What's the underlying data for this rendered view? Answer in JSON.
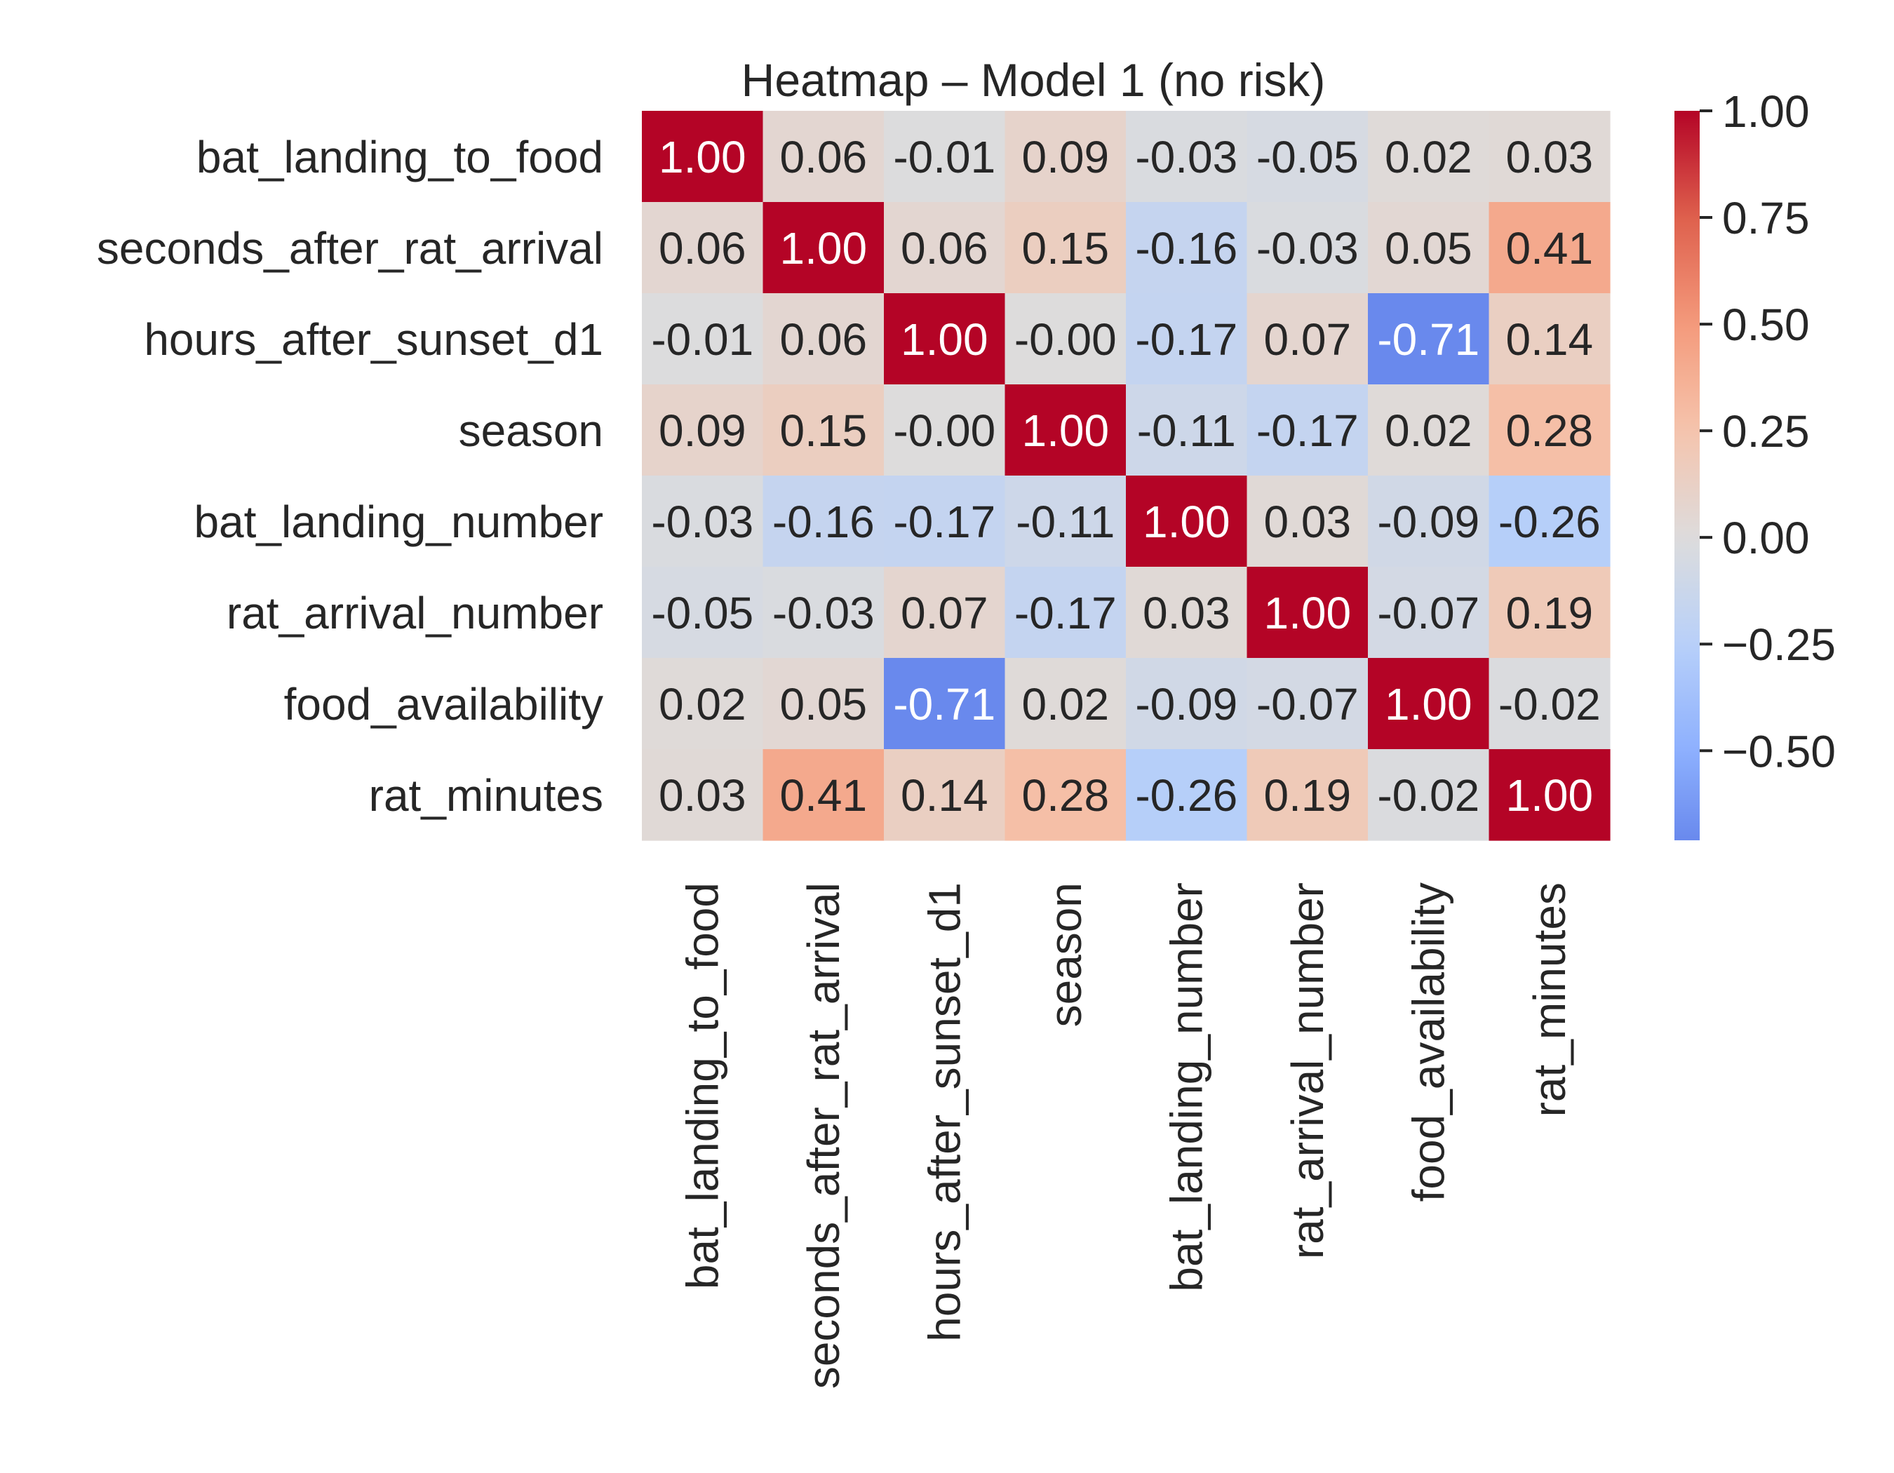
{
  "chart_data": {
    "type": "heatmap",
    "title": "Heatmap – Model 1 (no risk)",
    "xlabel": "",
    "ylabel": "",
    "row_labels": [
      "bat_landing_to_food",
      "seconds_after_rat_arrival",
      "hours_after_sunset_d1",
      "season",
      "bat_landing_number",
      "rat_arrival_number",
      "food_availability",
      "rat_minutes"
    ],
    "column_labels": [
      "bat_landing_to_food",
      "seconds_after_rat_arrival",
      "hours_after_sunset_d1",
      "season",
      "bat_landing_number",
      "rat_arrival_number",
      "food_availability",
      "rat_minutes"
    ],
    "values": [
      [
        1.0,
        0.06,
        -0.01,
        0.09,
        -0.03,
        -0.05,
        0.02,
        0.03
      ],
      [
        0.06,
        1.0,
        0.06,
        0.15,
        -0.16,
        -0.03,
        0.05,
        0.41
      ],
      [
        -0.01,
        0.06,
        1.0,
        -0.0,
        -0.17,
        0.07,
        -0.71,
        0.14
      ],
      [
        0.09,
        0.15,
        -0.0,
        1.0,
        -0.11,
        -0.17,
        0.02,
        0.28
      ],
      [
        -0.03,
        -0.16,
        -0.17,
        -0.11,
        1.0,
        0.03,
        -0.09,
        -0.26
      ],
      [
        -0.05,
        -0.03,
        0.07,
        -0.17,
        0.03,
        1.0,
        -0.07,
        0.19
      ],
      [
        0.02,
        0.05,
        -0.71,
        0.02,
        -0.09,
        -0.07,
        1.0,
        -0.02
      ],
      [
        0.03,
        0.41,
        0.14,
        0.28,
        -0.26,
        0.19,
        -0.02,
        1.0
      ]
    ],
    "annotation_format": "2 decimals",
    "colormap": "coolwarm",
    "colormap_anchor_colors": [
      "#3b4cc0",
      "#dddcdc",
      "#b40426"
    ],
    "colorbar": {
      "range": [
        -0.71,
        1.0
      ],
      "ticks": [
        1.0,
        0.75,
        0.5,
        0.25,
        0.0,
        -0.25,
        -0.5
      ],
      "tick_labels": [
        "1.00",
        "0.75",
        "0.50",
        "0.25",
        "0.00",
        "−0.25",
        "−0.50"
      ],
      "placement": "right"
    },
    "grid": false,
    "text_colors": {
      "dark": "#262626",
      "light": "#ffffff"
    }
  }
}
